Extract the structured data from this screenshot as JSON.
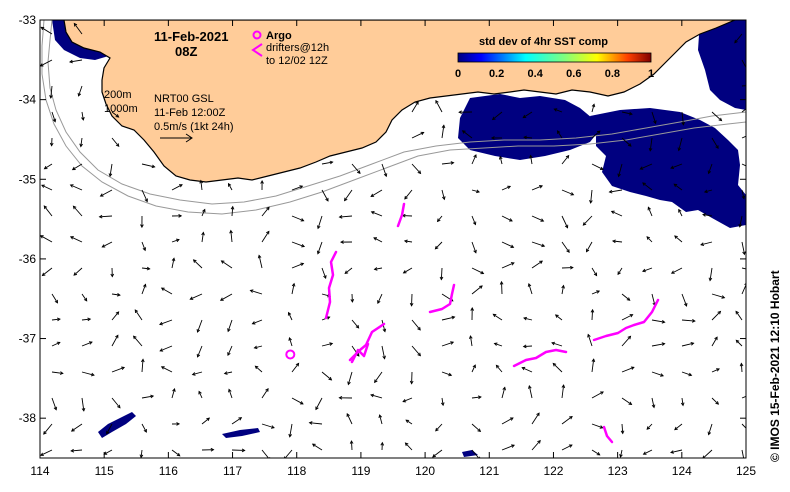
{
  "title": {
    "date": "11-Feb-2021",
    "hour": "08Z"
  },
  "legend": {
    "argo_label": "Argo",
    "drifters_label": "drifters@12h",
    "drifters_to": "to 12/02 12Z",
    "argo_color": "#ff00ff"
  },
  "contours": {
    "depth_200": "200m",
    "depth_1000": "1000m"
  },
  "current_info": {
    "model": "NRT00 GSL",
    "time": "11-Feb 12:00Z",
    "scale": "0.5m/s (1kt 24h)"
  },
  "colorbar": {
    "title": "std dev of 4hr SST comp",
    "ticks": [
      "0",
      "0.2",
      "0.4",
      "0.6",
      "0.8",
      "1"
    ]
  },
  "axes": {
    "x_ticks": [
      "114",
      "115",
      "116",
      "117",
      "118",
      "119",
      "120",
      "121",
      "122",
      "123",
      "124",
      "125"
    ],
    "y_ticks": [
      "-33",
      "-34",
      "-35",
      "-36",
      "-37",
      "-38"
    ]
  },
  "credit": "© IMOS 15-Feb-2021 12:10 Hobart",
  "colors": {
    "land": "#ffcc99",
    "sst_low": "#000080",
    "drifter": "#ff00ff"
  },
  "argo_float": {
    "lon": 117.9,
    "lat": -37.2
  }
}
